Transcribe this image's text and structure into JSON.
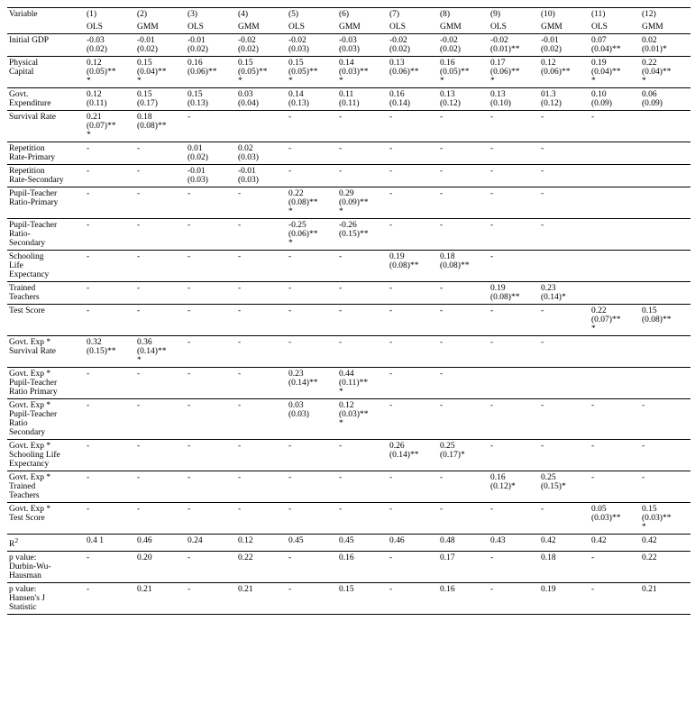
{
  "header": {
    "variable_label": "Variable",
    "col_numbers": [
      "(1)",
      "(2)",
      "(3)",
      "(4)",
      "(5)",
      "(6)",
      "(7)",
      "(8)",
      "(9)",
      "(10)",
      "(11)",
      "(12)"
    ],
    "methods": [
      "OLS",
      "GMM",
      "OLS",
      "GMM",
      "OLS",
      "GMM",
      "OLS",
      "GMM",
      "OLS",
      "GMM",
      "OLS",
      "GMM"
    ]
  },
  "rows": {
    "initial_gdp": {
      "label": "Initial GDP",
      "cells": [
        "-0.03 (0.02)",
        "-0.01 (0.02)",
        "-0.01 (0.02)",
        "-0.02 (0.02)",
        "-0.02 (0.03)",
        "-0.03 (0.03)",
        "-0.02 (0.02)",
        "-0.02 (0.02)",
        "-0.02 (0.01)**",
        "-0.01 (0.02)",
        "0.07 (0.04)**",
        "0.02 (0.01)*"
      ]
    },
    "physical_capital": {
      "label": "Physical Capital",
      "cells": [
        "0.12 (0.05)***",
        "0.15 (0.04)***",
        "0.16 (0.06)**",
        "0.15 (0.05)***",
        "0.15 (0.05)***",
        "0.14 (0.03)***",
        "0.13 (0.06)**",
        "0.16 (0.05)***",
        "0.17 (0.06)***",
        "0.12 (0.06)**",
        "0.19 (0.04)***",
        "0.22 (0.04)***"
      ]
    },
    "govt_expenditure": {
      "label": "Govt. Expenditure",
      "cells": [
        "0.12 (0.11)",
        "0.15 (0.17)",
        "0.15 (0.13)",
        "0.03 (0.04)",
        "0.14 (0.13)",
        "0.11 (0.11)",
        "0.16 (0.14)",
        "0.13 (0.12)",
        "0.13 (0.10)",
        "01.3 (0.12)",
        "0.10 (0.09)",
        "0.06 (0.09)"
      ]
    },
    "survival_rate": {
      "label": "Survival Rate",
      "cells": [
        "0.21 (0.07)***",
        "0.18 (0.08)**",
        "-",
        "",
        "-",
        "-",
        "-",
        "-",
        "-",
        "-",
        "-",
        ""
      ]
    },
    "rep_primary": {
      "label": "Repetition Rate-Primary",
      "cells": [
        "-",
        "-",
        "0.01 (0.02)",
        "0.02 (0.03)",
        "-",
        "-",
        "-",
        "-",
        "-",
        "-",
        "",
        ""
      ]
    },
    "rep_secondary": {
      "label": "Repetition Rate-Secondary",
      "cells": [
        "-",
        "-",
        "-0.01 (0.03)",
        "-0.01 (0.03)",
        "-",
        "-",
        "-",
        "-",
        "-",
        "-",
        "",
        ""
      ]
    },
    "ptr_primary": {
      "label": "Pupil-Teacher Ratio-Primary",
      "cells": [
        "-",
        "-",
        "-",
        "-",
        "0.22 (0.08)***",
        "0.29 (0.09)***",
        "-",
        "-",
        "-",
        "-",
        "",
        ""
      ]
    },
    "ptr_secondary": {
      "label": "Pupil-Teacher Ratio-Secondary",
      "cells": [
        "-",
        "-",
        "-",
        "-",
        "-0.25 (0.06)***",
        "-0.26 (0.15)**",
        "-",
        "-",
        "-",
        "-",
        "",
        ""
      ]
    },
    "schooling_life": {
      "label": "Schooling Life Expectancy",
      "cells": [
        "-",
        "-",
        "-",
        "-",
        "-",
        "-",
        "0.19 (0.08)**",
        "0.18 (0.08)**",
        "-",
        "",
        "",
        ""
      ]
    },
    "trained_teachers": {
      "label": "Trained Teachers",
      "cells": [
        "-",
        "-",
        "-",
        "-",
        "-",
        "-",
        "-",
        "-",
        "0.19 (0.08)**",
        "0.23 (0.14)*",
        "",
        ""
      ]
    },
    "test_score": {
      "label": "Test Score",
      "cells": [
        "-",
        "-",
        "-",
        "-",
        "-",
        "-",
        "-",
        "-",
        "-",
        "-",
        "0.22 (0.07)***",
        "0.15 (0.08)**"
      ]
    },
    "ge_survival": {
      "label": "Govt. Exp * Survival Rate",
      "cells": [
        "0.32 (0.15)**",
        "0.36 (0.14)***",
        "-",
        "-",
        "-",
        "-",
        "-",
        "-",
        "-",
        "-",
        "",
        ""
      ]
    },
    "ge_ptr_primary": {
      "label": "Govt. Exp * Pupil-Teacher Ratio Primary",
      "cells": [
        "-",
        "-",
        "-",
        "-",
        "0.23 (0.14)**",
        "0.44 (0.11)***",
        "-",
        "-",
        "",
        "",
        "",
        ""
      ]
    },
    "ge_ptr_secondary": {
      "label": "Govt. Exp * Pupil-Teacher Ratio Secondary",
      "cells": [
        "-",
        "-",
        "-",
        "-",
        "0.03 (0.03)",
        "0.12 (0.03)***",
        "-",
        "-",
        "-",
        "-",
        "-",
        "-"
      ]
    },
    "ge_schooling": {
      "label": "Govt. Exp * Schooling Life Expectancy",
      "cells": [
        "-",
        "-",
        "-",
        "-",
        "-",
        "-",
        "0.26 (0.14)**",
        "0.25 (0.17)*",
        "-",
        "-",
        "-",
        "-"
      ]
    },
    "ge_trained": {
      "label": "Govt. Exp * Trained Teachers",
      "cells": [
        "-",
        "-",
        "-",
        "-",
        "-",
        "-",
        "-",
        "-",
        "0.16 (0.12)*",
        "0.25 (0.15)*",
        "-",
        "-"
      ]
    },
    "ge_testscore": {
      "label": "Govt. Exp * Test Score",
      "cells": [
        "-",
        "-",
        "-",
        "-",
        "-",
        "-",
        "-",
        "-",
        "-",
        "-",
        "0.05 (0.03)**",
        "0.15 (0.03)***"
      ]
    },
    "r2": {
      "label": "R²",
      "cells": [
        "0.4 1",
        "0.46",
        "0.24",
        "0.12",
        "0.45",
        "0.45",
        "0.46",
        "0.48",
        "0.43",
        "0.42",
        "0.42",
        "0.42"
      ]
    },
    "dwh": {
      "label": "p value: Durbin-Wu-Hausman",
      "cells": [
        "-",
        "0.20",
        "-",
        "0.22",
        "-",
        "0.16",
        "-",
        "0.17",
        "-",
        "0.18",
        "-",
        "0.22"
      ]
    },
    "hansen": {
      "label": "p value: Hansen's J Statistic",
      "cells": [
        "-",
        "0.21",
        "-",
        "0.21",
        "-",
        "0.15",
        "-",
        "0.16",
        "-",
        "0.19",
        "-",
        "0.21"
      ]
    }
  }
}
